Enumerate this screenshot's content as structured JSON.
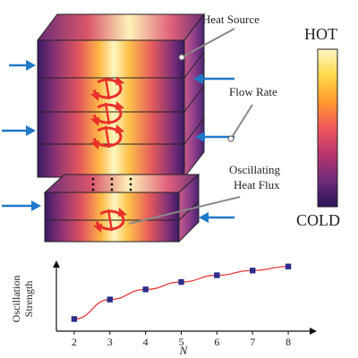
{
  "labels": {
    "heat_source": "Heat Source",
    "flow_rate": "Flow Rate",
    "oscillating_line1": "Oscillating",
    "oscillating_line2": "Heat Flux"
  },
  "colorbar": {
    "top_label": "HOT",
    "bottom_label": "COLD",
    "stops": [
      "#fff7c2",
      "#ffd84a",
      "#ff9a2e",
      "#f0565a",
      "#b8356e",
      "#6f2c7a",
      "#2a1458"
    ]
  },
  "colors": {
    "arrow": "#1f78c8",
    "vortex": "#e8312a",
    "callout": "#888888",
    "series": "#e23a3a",
    "marker": "#2b2e8a"
  },
  "chart_data": {
    "type": "line",
    "x": [
      2,
      3,
      4,
      5,
      6,
      7,
      8
    ],
    "y": [
      0.18,
      0.47,
      0.62,
      0.73,
      0.83,
      0.9,
      0.96
    ],
    "xticks": [
      "2",
      "3",
      "4",
      "5",
      "6",
      "7",
      "8"
    ],
    "xlabel": "N",
    "ylabel_line1": "Oscillation",
    "ylabel_line2": "Strength",
    "xlim": [
      1.5,
      8.6
    ],
    "ylim": [
      0,
      1.05
    ]
  }
}
